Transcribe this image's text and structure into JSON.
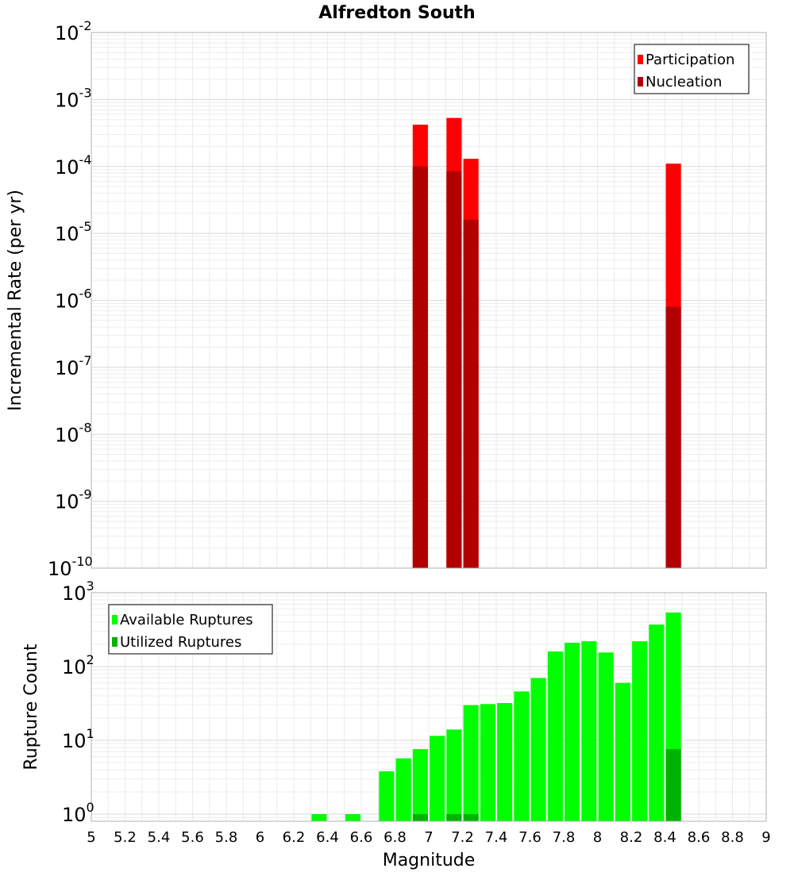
{
  "chart_data": {
    "title": "Alfredton South",
    "x_axis": {
      "label": "Magnitude",
      "range": [
        5,
        9
      ],
      "tick_labels": [
        "5",
        "5.2",
        "5.4",
        "5.6",
        "5.8",
        "6",
        "6.2",
        "6.4",
        "6.6",
        "6.8",
        "7",
        "7.2",
        "7.4",
        "7.6",
        "7.8",
        "8",
        "8.2",
        "8.4",
        "8.6",
        "8.8",
        "9"
      ]
    },
    "panels": [
      {
        "type": "bar",
        "y_scale": "log",
        "ylabel": "Incremental Rate (per yr)",
        "ylim": [
          1e-10,
          0.01
        ],
        "y_tick_exponents": [
          -10,
          -9,
          -8,
          -7,
          -6,
          -5,
          -4,
          -3,
          -2
        ],
        "grid": true,
        "legend_position": "top-right",
        "series": [
          {
            "name": "Participation",
            "color": "#ff0000",
            "points": [
              {
                "x": 6.95,
                "y": 0.00042
              },
              {
                "x": 7.15,
                "y": 0.00053
              },
              {
                "x": 7.25,
                "y": 0.00013
              },
              {
                "x": 8.45,
                "y": 0.00011
              }
            ]
          },
          {
            "name": "Nucleation",
            "color": "#b20000",
            "points": [
              {
                "x": 6.95,
                "y": 0.0001
              },
              {
                "x": 7.15,
                "y": 8.5e-05
              },
              {
                "x": 7.25,
                "y": 1.6e-05
              },
              {
                "x": 8.45,
                "y": 8e-07
              }
            ]
          }
        ]
      },
      {
        "type": "bar",
        "y_scale": "log",
        "ylabel": "Rupture Count",
        "ylim": [
          0.8,
          1000
        ],
        "y_tick_exponents": [
          0,
          1,
          2,
          3
        ],
        "grid": true,
        "legend_position": "top-left",
        "series": [
          {
            "name": "Available Ruptures",
            "color": "#00ff00",
            "points": [
              {
                "x": 6.35,
                "y": 1
              },
              {
                "x": 6.55,
                "y": 1
              },
              {
                "x": 6.75,
                "y": 3.8
              },
              {
                "x": 6.85,
                "y": 5.7
              },
              {
                "x": 6.95,
                "y": 7.6
              },
              {
                "x": 7.05,
                "y": 11.5
              },
              {
                "x": 7.15,
                "y": 14
              },
              {
                "x": 7.25,
                "y": 30
              },
              {
                "x": 7.35,
                "y": 31
              },
              {
                "x": 7.45,
                "y": 32
              },
              {
                "x": 7.55,
                "y": 46
              },
              {
                "x": 7.65,
                "y": 70
              },
              {
                "x": 7.75,
                "y": 160
              },
              {
                "x": 7.85,
                "y": 210
              },
              {
                "x": 7.95,
                "y": 220
              },
              {
                "x": 8.05,
                "y": 155
              },
              {
                "x": 8.15,
                "y": 60
              },
              {
                "x": 8.25,
                "y": 220
              },
              {
                "x": 8.35,
                "y": 370
              },
              {
                "x": 8.45,
                "y": 540
              }
            ]
          },
          {
            "name": "Utilized Ruptures",
            "color": "#00b200",
            "points": [
              {
                "x": 6.95,
                "y": 1
              },
              {
                "x": 7.15,
                "y": 1
              },
              {
                "x": 7.25,
                "y": 1
              },
              {
                "x": 8.45,
                "y": 7.6
              }
            ]
          }
        ]
      }
    ]
  }
}
